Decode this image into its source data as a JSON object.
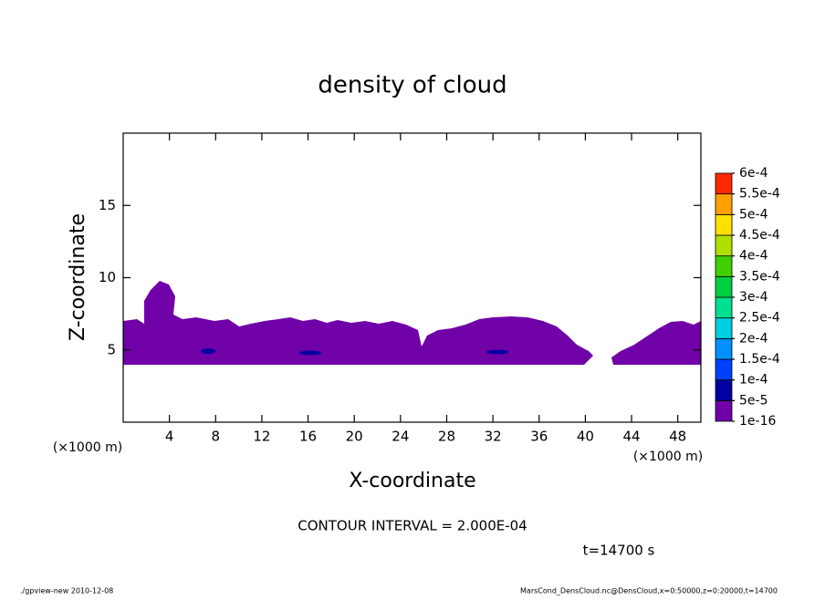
{
  "chart_data": {
    "type": "contour",
    "title": "density of cloud",
    "x_label": "X-coordinate",
    "y_label": "Z-coordinate",
    "x_unit": "(×1000 m)",
    "xlim": [
      0,
      50
    ],
    "xticks": [
      4,
      8,
      12,
      16,
      20,
      24,
      28,
      32,
      36,
      40,
      44,
      48
    ],
    "ylim": [
      0,
      20
    ],
    "yticks": [
      5,
      10,
      15
    ],
    "contour_interval": "CONTOUR INTERVAL = 2.000E-04",
    "time": "t=14700 s",
    "colorbar": {
      "levels": [
        {
          "value": 1e-16,
          "label": "1e-16"
        },
        {
          "value": 5e-05,
          "label": "5e-5"
        },
        {
          "value": 0.0001,
          "label": "1e-4"
        },
        {
          "value": 0.00015,
          "label": "1.5e-4"
        },
        {
          "value": 0.0002,
          "label": "2e-4"
        },
        {
          "value": 0.00025,
          "label": "2.5e-4"
        },
        {
          "value": 0.0003,
          "label": "3e-4"
        },
        {
          "value": 0.00035,
          "label": "3.5e-4"
        },
        {
          "value": 0.0004,
          "label": "4e-4"
        },
        {
          "value": 0.00045,
          "label": "4.5e-4"
        },
        {
          "value": 0.0005,
          "label": "5e-4"
        },
        {
          "value": 0.00055,
          "label": "5.5e-4"
        },
        {
          "value": 0.0006,
          "label": "6e-4"
        }
      ],
      "colors": [
        "#7000a8",
        "#0000a0",
        "#0040ff",
        "#0090ff",
        "#00d0e0",
        "#00e090",
        "#00d040",
        "#40d000",
        "#b0e000",
        "#ffe000",
        "#ffa000",
        "#ff2800"
      ]
    },
    "footer_left": "./gpview-new  2010-12-08",
    "footer_right": "MarsCond_DensCloud.nc@DensCloud,x=0:50000,z=0:20000,t=14700"
  }
}
